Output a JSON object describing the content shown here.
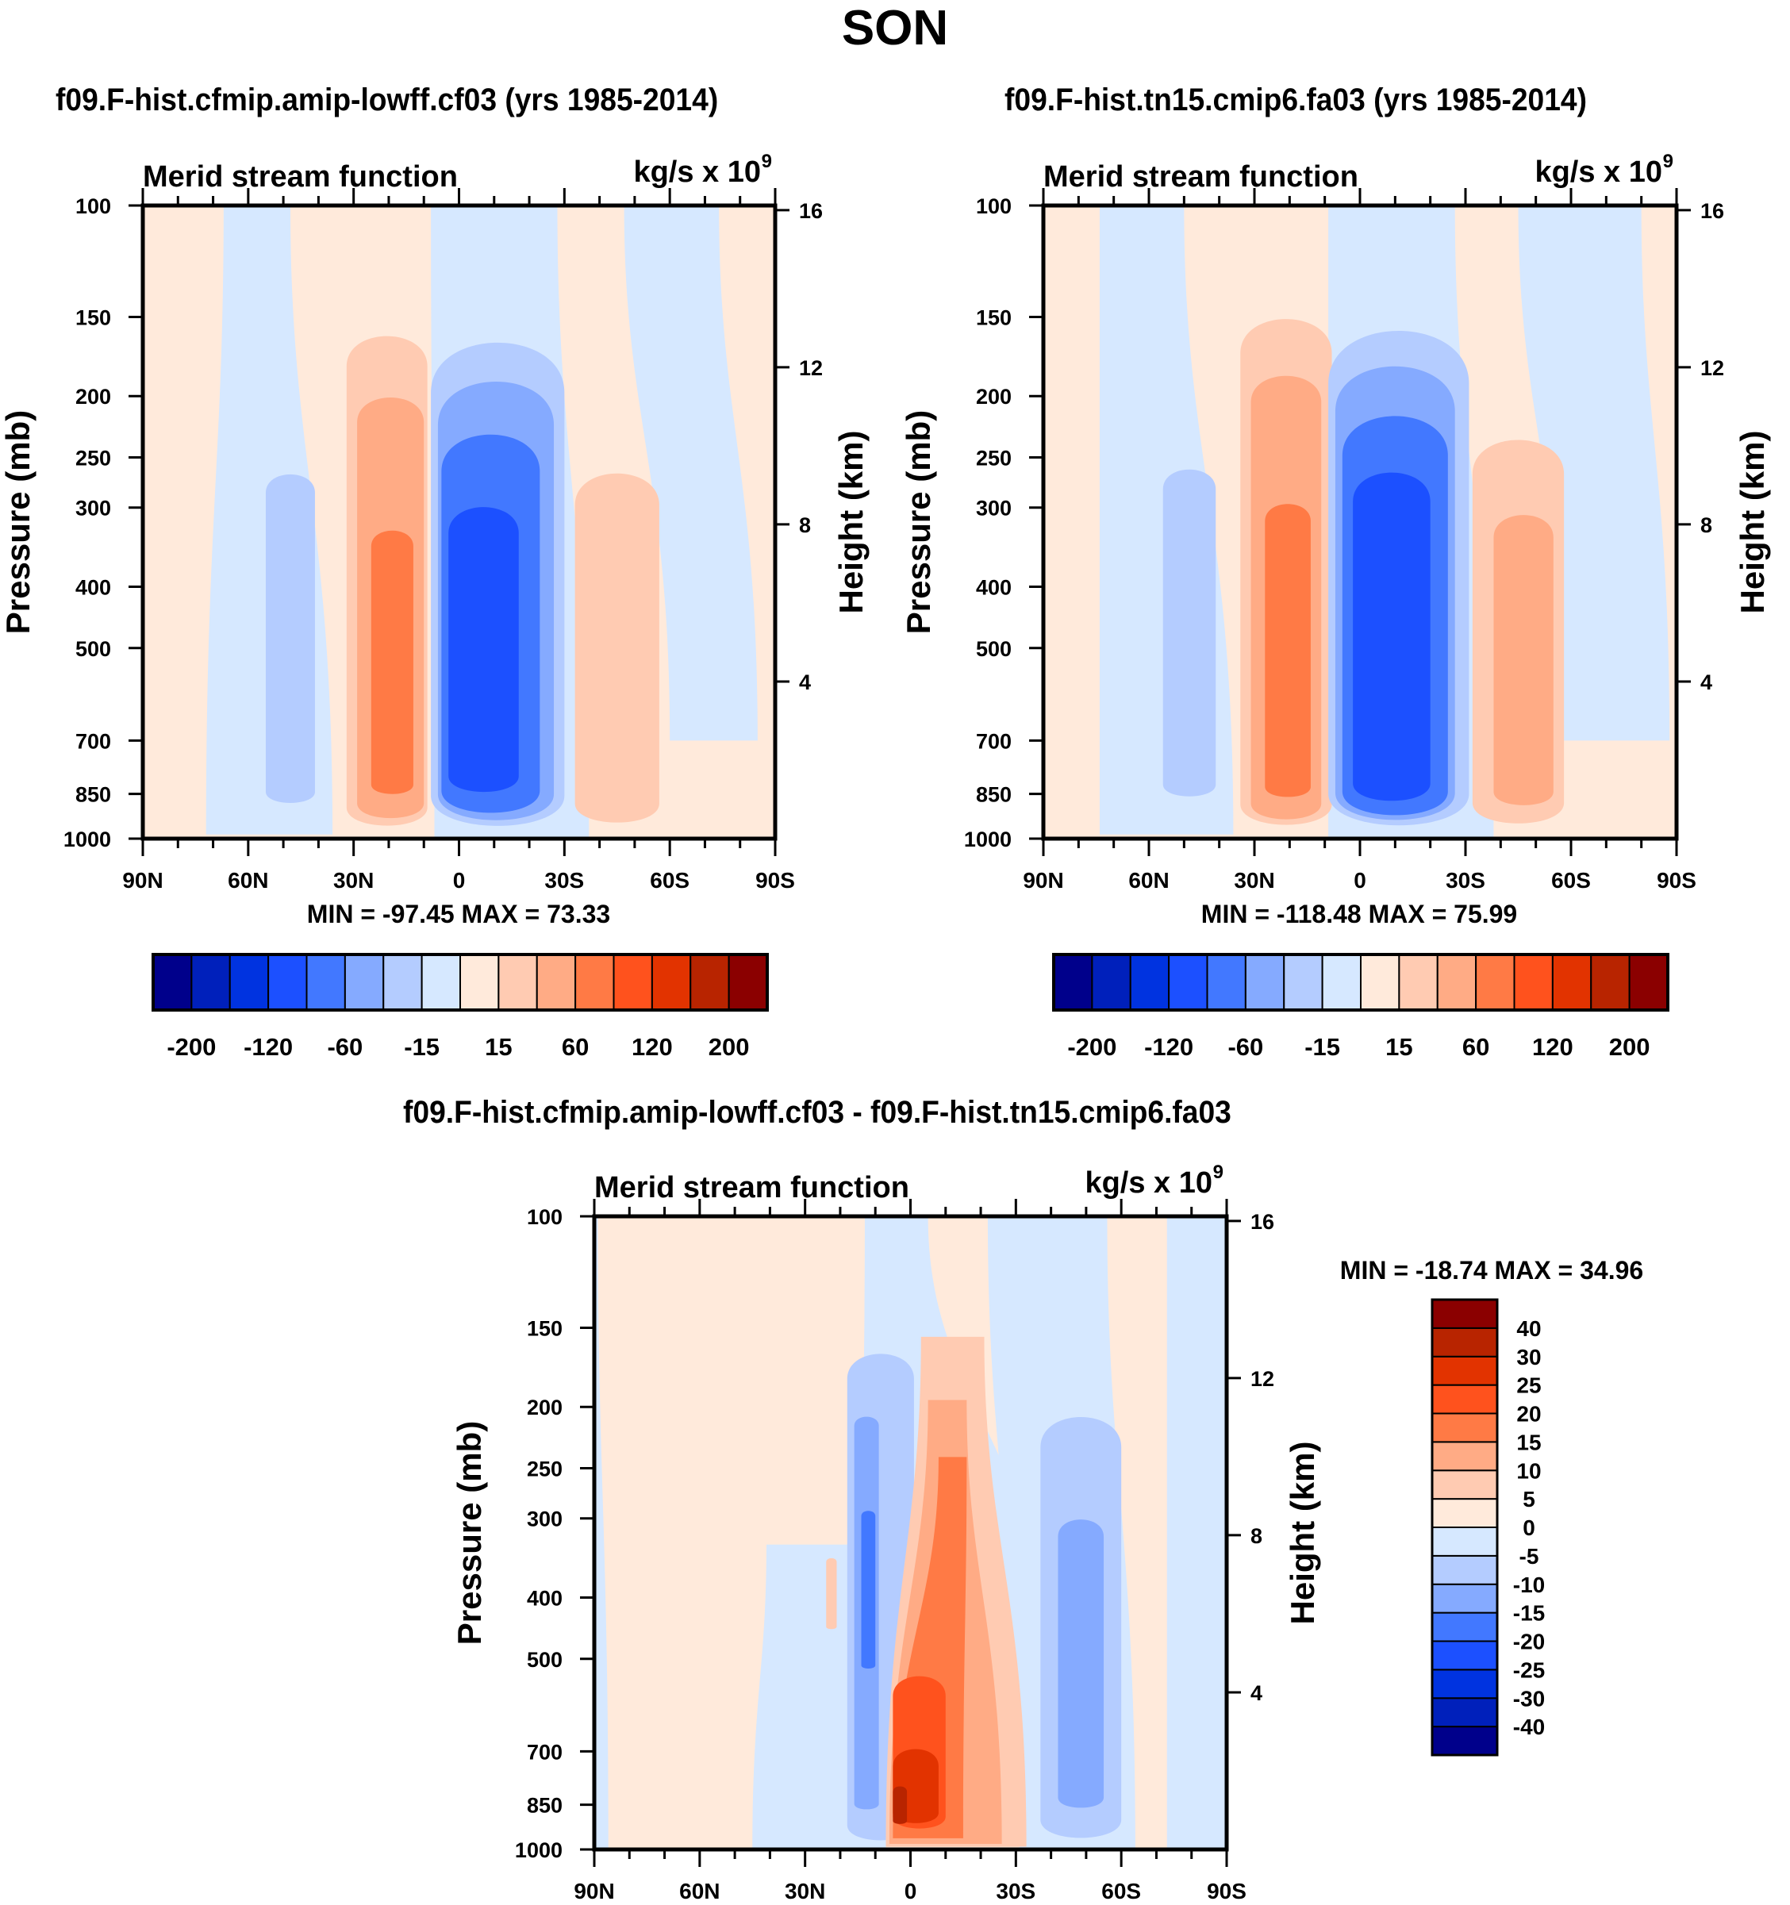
{
  "page": {
    "title": "SON"
  },
  "colors": {
    "palette16": [
      "#00008b",
      "#0020bb",
      "#0033e0",
      "#1c50ff",
      "#4278ff",
      "#85aaff",
      "#b4ccff",
      "#d6e8ff",
      "#ffeadb",
      "#ffcbb2",
      "#ffab85",
      "#ff7a45",
      "#ff521d",
      "#e23300",
      "#b82400",
      "#8b0000"
    ],
    "palette16_diff": [
      "#00008b",
      "#0020bb",
      "#0033e0",
      "#1c50ff",
      "#4278ff",
      "#85aaff",
      "#b4ccff",
      "#d6e8ff",
      "#ffeadb",
      "#ffcbb2",
      "#ffab85",
      "#ff7a45",
      "#ff521d",
      "#e23300",
      "#b82400",
      "#8b0000"
    ]
  },
  "chart_data": [
    {
      "type": "heatmap",
      "subtype": "filled-contour",
      "title": "f09.F-hist.cfmip.amip-lowff.cf03 (yrs 1985-2014)",
      "left_string": "Merid stream function",
      "right_string": "kg/s x 10",
      "right_string_sup": "9",
      "xlabel": "",
      "ylabel": "Pressure (mb)",
      "y2label": "Height (km)",
      "x_ticks": [
        "90N",
        "60N",
        "30N",
        "0",
        "30S",
        "60S",
        "90S"
      ],
      "x_range": [
        90,
        -90
      ],
      "y_ticks": [
        "100",
        "150",
        "200",
        "250",
        "300",
        "400",
        "500",
        "700",
        "850",
        "1000"
      ],
      "y_range_mb": [
        100,
        1000
      ],
      "y2_ticks": [
        "16",
        "12",
        "8",
        "4"
      ],
      "minmax_text": "MIN = -97.45  MAX =  73.33",
      "min": -97.45,
      "max": 73.33,
      "colorbar": {
        "orientation": "horizontal",
        "levels": [
          -250,
          -200,
          -160,
          -120,
          -90,
          -60,
          -30,
          -15,
          0,
          15,
          30,
          60,
          90,
          120,
          160,
          200,
          250
        ],
        "labels": [
          "-200",
          "-120",
          "-60",
          "-15",
          "15",
          "60",
          "120",
          "200"
        ]
      },
      "features": [
        {
          "name": "nh-polar-neg",
          "level": 7,
          "lat": [
            72,
            36
          ],
          "p_top": 100,
          "p_bot": 985,
          "shape": "tilted",
          "top_lat": [
            67,
            48
          ]
        },
        {
          "name": "sh-neg-upper",
          "level": 7,
          "lat": [
            -60,
            -85
          ],
          "p_top": 100,
          "p_bot": 700,
          "shape": "tilted",
          "top_lat": [
            -47,
            -74
          ]
        },
        {
          "name": "hadley-neg-outer",
          "level": 7,
          "lat": [
            7,
            -37
          ],
          "p_top": 100,
          "p_bot": 1000,
          "shape": "tilted",
          "top_lat": [
            8,
            -28
          ]
        },
        {
          "name": "nh-ferrel-neg",
          "level": 6,
          "lat": [
            55,
            41
          ],
          "p_top": 260,
          "p_bot": 890,
          "shape": "blob"
        },
        {
          "name": "nh-hadley-pos1",
          "level": 9,
          "lat": [
            32,
            9
          ],
          "p_top": 155,
          "p_bot": 975,
          "shape": "blob"
        },
        {
          "name": "nh-hadley-pos2",
          "level": 10,
          "lat": [
            29,
            10
          ],
          "p_top": 195,
          "p_bot": 945,
          "shape": "blob"
        },
        {
          "name": "nh-hadley-pos3",
          "level": 11,
          "lat": [
            25,
            13
          ],
          "p_top": 320,
          "p_bot": 860,
          "shape": "blob"
        },
        {
          "name": "sh-ferrel-pos",
          "level": 9,
          "lat": [
            -33,
            -57
          ],
          "p_top": 255,
          "p_bot": 965,
          "shape": "blob"
        },
        {
          "name": "hadley-neg1",
          "level": 6,
          "lat": [
            8,
            -30
          ],
          "p_top": 155,
          "p_bot": 990,
          "shape": "blob"
        },
        {
          "name": "hadley-neg2",
          "level": 5,
          "lat": [
            6,
            -27
          ],
          "p_top": 180,
          "p_bot": 965,
          "shape": "blob"
        },
        {
          "name": "hadley-neg3",
          "level": 4,
          "lat": [
            5,
            -23
          ],
          "p_top": 220,
          "p_bot": 935,
          "shape": "blob"
        },
        {
          "name": "hadley-neg4",
          "level": 3,
          "lat": [
            3,
            -17
          ],
          "p_top": 290,
          "p_bot": 860,
          "shape": "blob"
        }
      ]
    },
    {
      "type": "heatmap",
      "subtype": "filled-contour",
      "title": "f09.F-hist.tn15.cmip6.fa03 (yrs 1985-2014)",
      "left_string": "Merid stream function",
      "right_string": "kg/s x 10",
      "right_string_sup": "9",
      "xlabel": "",
      "ylabel": "Pressure (mb)",
      "y2label": "Height (km)",
      "x_ticks": [
        "90N",
        "60N",
        "30N",
        "0",
        "30S",
        "60S",
        "90S"
      ],
      "x_range": [
        90,
        -90
      ],
      "y_ticks": [
        "100",
        "150",
        "200",
        "250",
        "300",
        "400",
        "500",
        "700",
        "850",
        "1000"
      ],
      "y_range_mb": [
        100,
        1000
      ],
      "y2_ticks": [
        "16",
        "12",
        "8",
        "4"
      ],
      "minmax_text": "MIN = -118.48  MAX =  75.99",
      "min": -118.48,
      "max": 75.99,
      "colorbar": {
        "orientation": "horizontal",
        "levels": [
          -250,
          -200,
          -160,
          -120,
          -90,
          -60,
          -30,
          -15,
          0,
          15,
          30,
          60,
          90,
          120,
          160,
          200,
          250
        ],
        "labels": [
          "-200",
          "-120",
          "-60",
          "-15",
          "15",
          "60",
          "120",
          "200"
        ]
      },
      "features": [
        {
          "name": "nh-polar-neg",
          "level": 7,
          "lat": [
            74,
            36
          ],
          "p_top": 100,
          "p_bot": 985,
          "shape": "tilted",
          "top_lat": [
            74,
            50
          ]
        },
        {
          "name": "sh-neg-upper",
          "level": 7,
          "lat": [
            -58,
            -88
          ],
          "p_top": 100,
          "p_bot": 700,
          "shape": "tilted",
          "top_lat": [
            -45,
            -80
          ]
        },
        {
          "name": "hadley-neg-outer",
          "level": 7,
          "lat": [
            9,
            -38
          ],
          "p_top": 100,
          "p_bot": 1000,
          "shape": "tilted",
          "top_lat": [
            9,
            -27
          ]
        },
        {
          "name": "nh-ferrel-neg",
          "level": 6,
          "lat": [
            56,
            41
          ],
          "p_top": 255,
          "p_bot": 870,
          "shape": "blob"
        },
        {
          "name": "nh-hadley-pos1",
          "level": 9,
          "lat": [
            34,
            8
          ],
          "p_top": 145,
          "p_bot": 975,
          "shape": "blob"
        },
        {
          "name": "nh-hadley-pos2",
          "level": 10,
          "lat": [
            31,
            11
          ],
          "p_top": 180,
          "p_bot": 950,
          "shape": "blob"
        },
        {
          "name": "nh-hadley-pos3",
          "level": 11,
          "lat": [
            27,
            14
          ],
          "p_top": 290,
          "p_bot": 870,
          "shape": "blob"
        },
        {
          "name": "sh-ferrel-pos1",
          "level": 9,
          "lat": [
            -32,
            -58
          ],
          "p_top": 225,
          "p_bot": 970,
          "shape": "blob"
        },
        {
          "name": "sh-ferrel-pos2",
          "level": 10,
          "lat": [
            -38,
            -55
          ],
          "p_top": 300,
          "p_bot": 900,
          "shape": "blob"
        },
        {
          "name": "hadley-neg1",
          "level": 6,
          "lat": [
            9,
            -31
          ],
          "p_top": 148,
          "p_bot": 990,
          "shape": "blob"
        },
        {
          "name": "hadley-neg2",
          "level": 5,
          "lat": [
            7,
            -27
          ],
          "p_top": 170,
          "p_bot": 965,
          "shape": "blob"
        },
        {
          "name": "hadley-neg3",
          "level": 4,
          "lat": [
            5,
            -25
          ],
          "p_top": 205,
          "p_bot": 945,
          "shape": "blob"
        },
        {
          "name": "hadley-neg4",
          "level": 3,
          "lat": [
            2,
            -20
          ],
          "p_top": 255,
          "p_bot": 890,
          "shape": "blob"
        }
      ]
    },
    {
      "type": "heatmap",
      "subtype": "filled-contour",
      "title": "f09.F-hist.cfmip.amip-lowff.cf03 - f09.F-hist.tn15.cmip6.fa03",
      "left_string": "Merid stream function",
      "right_string": "kg/s x 10",
      "right_string_sup": "9",
      "xlabel": "",
      "ylabel": "Pressure (mb)",
      "y2label": "Height (km)",
      "x_ticks": [
        "90N",
        "60N",
        "30N",
        "0",
        "30S",
        "60S",
        "90S"
      ],
      "x_range": [
        90,
        -90
      ],
      "y_ticks": [
        "100",
        "150",
        "200",
        "250",
        "300",
        "400",
        "500",
        "700",
        "850",
        "1000"
      ],
      "y_range_mb": [
        100,
        1000
      ],
      "y2_ticks": [
        "16",
        "12",
        "8",
        "4"
      ],
      "minmax_text": "MIN = -18.74  MAX =  34.96",
      "min": -18.74,
      "max": 34.96,
      "colorbar": {
        "orientation": "vertical",
        "levels": [
          -50,
          -40,
          -30,
          -25,
          -20,
          -15,
          -10,
          -5,
          0,
          5,
          10,
          15,
          20,
          25,
          30,
          40,
          50
        ],
        "labels": [
          "40",
          "30",
          "25",
          "20",
          "15",
          "10",
          "5",
          "0",
          "-5",
          "-10",
          "-15",
          "-20",
          "-25",
          "-30",
          "-40"
        ]
      },
      "features": [
        {
          "name": "nh-neg-broad",
          "level": 7,
          "lat": [
            45,
            7
          ],
          "p_top": 330,
          "p_bot": 1000,
          "shape": "tilted",
          "top_lat": [
            41,
            12
          ]
        },
        {
          "name": "trop-neg-upper",
          "level": 7,
          "lat": [
            14,
            -40
          ],
          "p_top": 100,
          "p_bot": 560,
          "shape": "tilted",
          "top_lat": [
            13,
            -5
          ]
        },
        {
          "name": "sh-neg",
          "level": 7,
          "lat": [
            -31,
            -64
          ],
          "p_top": 100,
          "p_bot": 1000,
          "shape": "tilted",
          "top_lat": [
            -22,
            -56
          ]
        },
        {
          "name": "polar-neg",
          "level": 7,
          "lat": [
            -73,
            -90
          ],
          "p_top": 100,
          "p_bot": 1000,
          "shape": "tilted",
          "top_lat": [
            -73,
            -90
          ]
        },
        {
          "name": "nh-pole-neg",
          "level": 7,
          "lat": [
            90,
            86
          ],
          "p_top": 100,
          "p_bot": 1000,
          "shape": "tilted",
          "top_lat": [
            90,
            89
          ]
        },
        {
          "name": "trop-neg1",
          "level": 6,
          "lat": [
            18,
            -1
          ],
          "p_top": 160,
          "p_bot": 985,
          "shape": "blob"
        },
        {
          "name": "trop-neg2",
          "level": 5,
          "lat": [
            16,
            9
          ],
          "p_top": 205,
          "p_bot": 870,
          "shape": "blob"
        },
        {
          "name": "trop-neg3",
          "level": 4,
          "lat": [
            14,
            10
          ],
          "p_top": 290,
          "p_bot": 520,
          "shape": "blob"
        },
        {
          "name": "nh-pos-small",
          "level": 9,
          "lat": [
            24,
            21
          ],
          "p_top": 345,
          "p_bot": 450,
          "shape": "blob"
        },
        {
          "name": "eq-pos1",
          "level": 9,
          "lat": [
            7,
            -33
          ],
          "p_top": 155,
          "p_bot": 990,
          "shape": "tilted",
          "top_lat": [
            -3,
            -21
          ]
        },
        {
          "name": "eq-pos2",
          "level": 10,
          "lat": [
            6,
            -26
          ],
          "p_top": 195,
          "p_bot": 980,
          "shape": "tilted",
          "top_lat": [
            -5,
            -16
          ]
        },
        {
          "name": "eq-pos3",
          "level": 11,
          "lat": [
            5,
            -15
          ],
          "p_top": 240,
          "p_bot": 960,
          "shape": "tilted",
          "top_lat": [
            -8,
            -16
          ]
        },
        {
          "name": "eq-pos4",
          "level": 12,
          "lat": [
            5,
            -10
          ],
          "p_top": 520,
          "p_bot": 940,
          "shape": "blob"
        },
        {
          "name": "eq-pos5",
          "level": 13,
          "lat": [
            5,
            -8
          ],
          "p_top": 680,
          "p_bot": 920,
          "shape": "blob"
        },
        {
          "name": "eq-pos6",
          "level": 14,
          "lat": [
            5,
            1
          ],
          "p_top": 790,
          "p_bot": 915,
          "shape": "blob"
        },
        {
          "name": "sh-neg2",
          "level": 6,
          "lat": [
            -37,
            -60
          ],
          "p_top": 200,
          "p_bot": 980,
          "shape": "blob"
        },
        {
          "name": "sh-neg3",
          "level": 5,
          "lat": [
            -42,
            -55
          ],
          "p_top": 295,
          "p_bot": 870,
          "shape": "blob"
        }
      ]
    }
  ]
}
